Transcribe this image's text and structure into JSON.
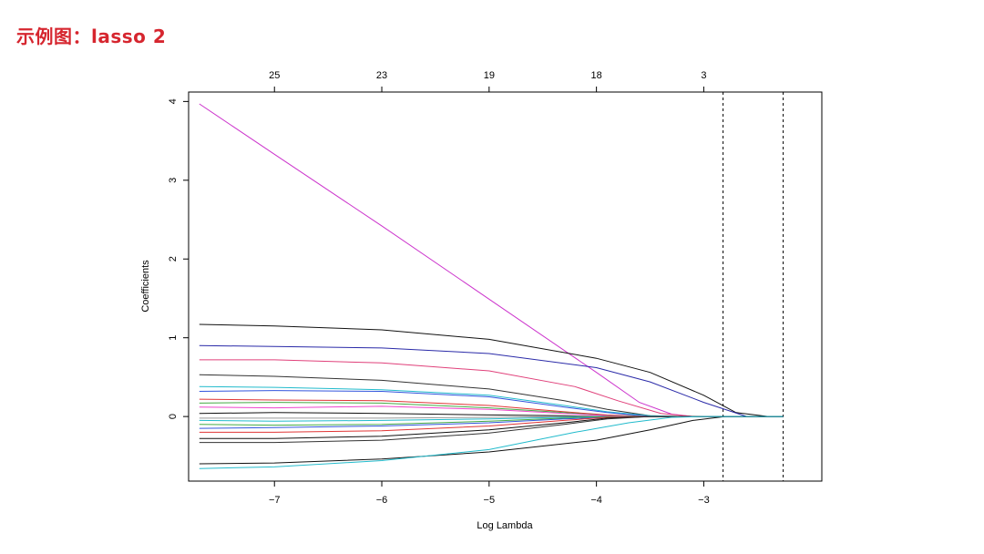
{
  "page": {
    "heading": "示例图：lasso 2"
  },
  "chart_data": {
    "type": "line",
    "xlabel": "Log Lambda",
    "ylabel": "Coefficients",
    "xlim": [
      -7.8,
      -1.9
    ],
    "ylim": [
      -0.82,
      4.12
    ],
    "x_ticks": [
      -7,
      -6,
      -5,
      -4,
      -3
    ],
    "x_tick_labels": [
      "−7",
      "−6",
      "−5",
      "−4",
      "−3"
    ],
    "y_ticks": [
      0,
      1,
      2,
      3,
      4
    ],
    "y_tick_labels": [
      "0",
      "1",
      "2",
      "3",
      "4"
    ],
    "top_axis": {
      "ticks": [
        -7,
        -6,
        -5,
        -4,
        -3
      ],
      "labels": [
        "25",
        "23",
        "19",
        "18",
        "3"
      ]
    },
    "reference_lines": {
      "style": "dashed",
      "x": [
        -2.82,
        -2.26
      ]
    },
    "grid": false,
    "legend": "none",
    "path_x_range": [
      -7.7,
      -2.26
    ],
    "series": [
      {
        "color": "#cc33cc",
        "x": [
          -7.7,
          -7.0,
          -6.0,
          -5.0,
          -4.0,
          -3.6,
          -3.3,
          -3.1,
          -2.26
        ],
        "y": [
          3.97,
          3.33,
          2.42,
          1.49,
          0.56,
          0.18,
          0.03,
          0.0,
          0.0
        ]
      },
      {
        "color": "#111111",
        "x": [
          -7.7,
          -7.0,
          -6.0,
          -5.0,
          -4.0,
          -3.5,
          -3.0,
          -2.7,
          -2.4,
          -2.26
        ],
        "y": [
          1.17,
          1.15,
          1.1,
          0.98,
          0.74,
          0.56,
          0.27,
          0.05,
          0.0,
          0.0
        ]
      },
      {
        "color": "#2a2aa8",
        "x": [
          -7.7,
          -7.0,
          -6.0,
          -5.0,
          -4.0,
          -3.5,
          -3.0,
          -2.6,
          -2.26
        ],
        "y": [
          0.9,
          0.89,
          0.87,
          0.8,
          0.62,
          0.44,
          0.18,
          0.0,
          0.0
        ]
      },
      {
        "color": "#e0407a",
        "x": [
          -7.7,
          -7.0,
          -6.0,
          -5.0,
          -4.2,
          -3.8,
          -3.4,
          -3.1,
          -2.26
        ],
        "y": [
          0.72,
          0.72,
          0.68,
          0.58,
          0.38,
          0.2,
          0.04,
          0.0,
          0.0
        ]
      },
      {
        "color": "#333333",
        "x": [
          -7.7,
          -7.0,
          -6.0,
          -5.0,
          -4.3,
          -3.9,
          -3.5,
          -3.2,
          -2.26
        ],
        "y": [
          0.53,
          0.51,
          0.46,
          0.35,
          0.2,
          0.09,
          0.01,
          0.0,
          0.0
        ]
      },
      {
        "color": "#22bbcc",
        "x": [
          -7.7,
          -7.0,
          -6.0,
          -5.0,
          -4.3,
          -3.9,
          -3.5,
          -3.2,
          -2.26
        ],
        "y": [
          0.38,
          0.37,
          0.34,
          0.27,
          0.14,
          0.06,
          0.01,
          0.0,
          0.0
        ]
      },
      {
        "color": "#3355dd",
        "x": [
          -7.7,
          -7.0,
          -6.0,
          -5.0,
          -4.3,
          -3.9,
          -3.5,
          -3.2,
          -2.26
        ],
        "y": [
          0.32,
          0.33,
          0.32,
          0.25,
          0.12,
          0.05,
          0.0,
          0.0,
          0.0
        ]
      },
      {
        "color": "#e03535",
        "x": [
          -7.7,
          -7.0,
          -6.0,
          -5.0,
          -4.3,
          -3.9,
          -3.5,
          -3.2,
          -2.26
        ],
        "y": [
          0.22,
          0.21,
          0.2,
          0.14,
          0.06,
          0.02,
          0.0,
          0.0,
          0.0
        ]
      },
      {
        "color": "#44aa44",
        "x": [
          -7.7,
          -7.0,
          -6.0,
          -5.0,
          -4.3,
          -3.9,
          -3.5,
          -3.2,
          -2.26
        ],
        "y": [
          0.17,
          0.18,
          0.17,
          0.11,
          0.05,
          0.01,
          0.0,
          0.0,
          0.0
        ]
      },
      {
        "color": "#ee44cc",
        "x": [
          -7.7,
          -7.0,
          -6.0,
          -5.0,
          -4.3,
          -3.9,
          -3.5,
          -3.2,
          -2.26
        ],
        "y": [
          0.12,
          0.11,
          0.13,
          0.09,
          0.04,
          0.01,
          0.0,
          0.0,
          0.0
        ]
      },
      {
        "color": "#111111",
        "x": [
          -7.7,
          -7.0,
          -6.0,
          -5.0,
          -4.3,
          -3.9,
          -3.5,
          -3.2,
          -2.26
        ],
        "y": [
          0.04,
          0.05,
          0.04,
          0.02,
          0.01,
          0.0,
          0.0,
          0.0,
          0.0
        ]
      },
      {
        "color": "#999999",
        "x": [
          -7.7,
          -7.0,
          -6.0,
          -5.0,
          -4.3,
          -3.9,
          -3.5,
          -3.2,
          -2.26
        ],
        "y": [
          -0.02,
          -0.02,
          -0.02,
          -0.01,
          0.0,
          0.0,
          0.0,
          0.0,
          0.0
        ]
      },
      {
        "color": "#22bbcc",
        "x": [
          -7.7,
          -7.0,
          -6.0,
          -5.0,
          -4.3,
          -3.9,
          -3.5,
          -3.2,
          -2.26
        ],
        "y": [
          -0.05,
          -0.06,
          -0.05,
          -0.03,
          -0.01,
          0.0,
          0.0,
          0.0,
          0.0
        ]
      },
      {
        "color": "#44aa44",
        "x": [
          -7.7,
          -7.0,
          -6.0,
          -5.0,
          -4.3,
          -3.9,
          -3.5,
          -3.2,
          -2.26
        ],
        "y": [
          -0.1,
          -0.11,
          -0.1,
          -0.06,
          -0.02,
          0.0,
          0.0,
          0.0,
          0.0
        ]
      },
      {
        "color": "#3355dd",
        "x": [
          -7.7,
          -7.0,
          -6.0,
          -5.0,
          -4.3,
          -3.9,
          -3.5,
          -3.2,
          -2.26
        ],
        "y": [
          -0.15,
          -0.14,
          -0.12,
          -0.08,
          -0.03,
          -0.01,
          0.0,
          0.0,
          0.0
        ]
      },
      {
        "color": "#e03535",
        "x": [
          -7.7,
          -7.0,
          -6.0,
          -5.0,
          -4.3,
          -3.9,
          -3.5,
          -3.2,
          -2.26
        ],
        "y": [
          -0.2,
          -0.2,
          -0.18,
          -0.12,
          -0.05,
          -0.01,
          0.0,
          0.0,
          0.0
        ]
      },
      {
        "color": "#111111",
        "x": [
          -7.7,
          -7.0,
          -6.0,
          -5.0,
          -4.3,
          -3.9,
          -3.5,
          -3.2,
          -2.26
        ],
        "y": [
          -0.28,
          -0.28,
          -0.25,
          -0.17,
          -0.08,
          -0.02,
          0.0,
          0.0,
          0.0
        ]
      },
      {
        "color": "#333333",
        "x": [
          -7.7,
          -7.0,
          -6.0,
          -5.0,
          -4.3,
          -3.9,
          -3.5,
          -3.2,
          -2.26
        ],
        "y": [
          -0.33,
          -0.33,
          -0.3,
          -0.21,
          -0.1,
          -0.03,
          0.0,
          0.0,
          0.0
        ]
      },
      {
        "color": "#111111",
        "x": [
          -7.7,
          -7.0,
          -6.0,
          -5.0,
          -4.0,
          -3.5,
          -3.1,
          -2.8,
          -2.26
        ],
        "y": [
          -0.6,
          -0.59,
          -0.54,
          -0.45,
          -0.3,
          -0.17,
          -0.05,
          0.0,
          0.0
        ]
      },
      {
        "color": "#22bbcc",
        "x": [
          -7.7,
          -7.0,
          -6.0,
          -5.0,
          -4.2,
          -3.7,
          -3.3,
          -3.0,
          -2.26
        ],
        "y": [
          -0.66,
          -0.64,
          -0.56,
          -0.42,
          -0.2,
          -0.08,
          -0.01,
          0.0,
          0.0
        ]
      }
    ]
  }
}
